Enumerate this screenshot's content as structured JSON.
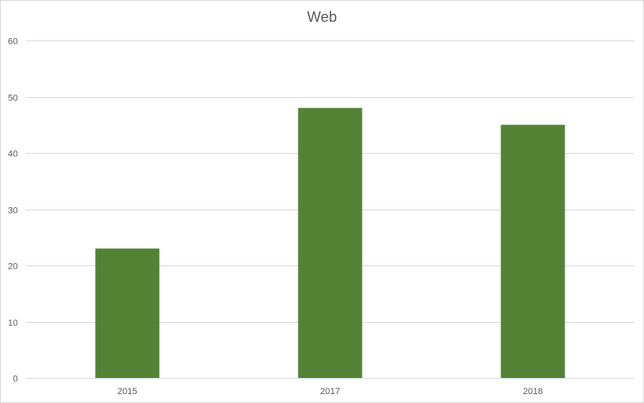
{
  "chart_data": {
    "type": "bar",
    "title": "Web",
    "categories": [
      "2015",
      "2017",
      "2018"
    ],
    "values": [
      23,
      48,
      45
    ],
    "xlabel": "",
    "ylabel": "",
    "ylim": [
      0,
      60
    ],
    "yticks": [
      0,
      10,
      20,
      30,
      40,
      50,
      60
    ],
    "grid": true,
    "legend": "none",
    "colors": {
      "bar": "#548235",
      "gridline": "#d9d9d9",
      "axis_text": "#595959",
      "title": "#595959",
      "border": "#d9d9d9"
    }
  }
}
